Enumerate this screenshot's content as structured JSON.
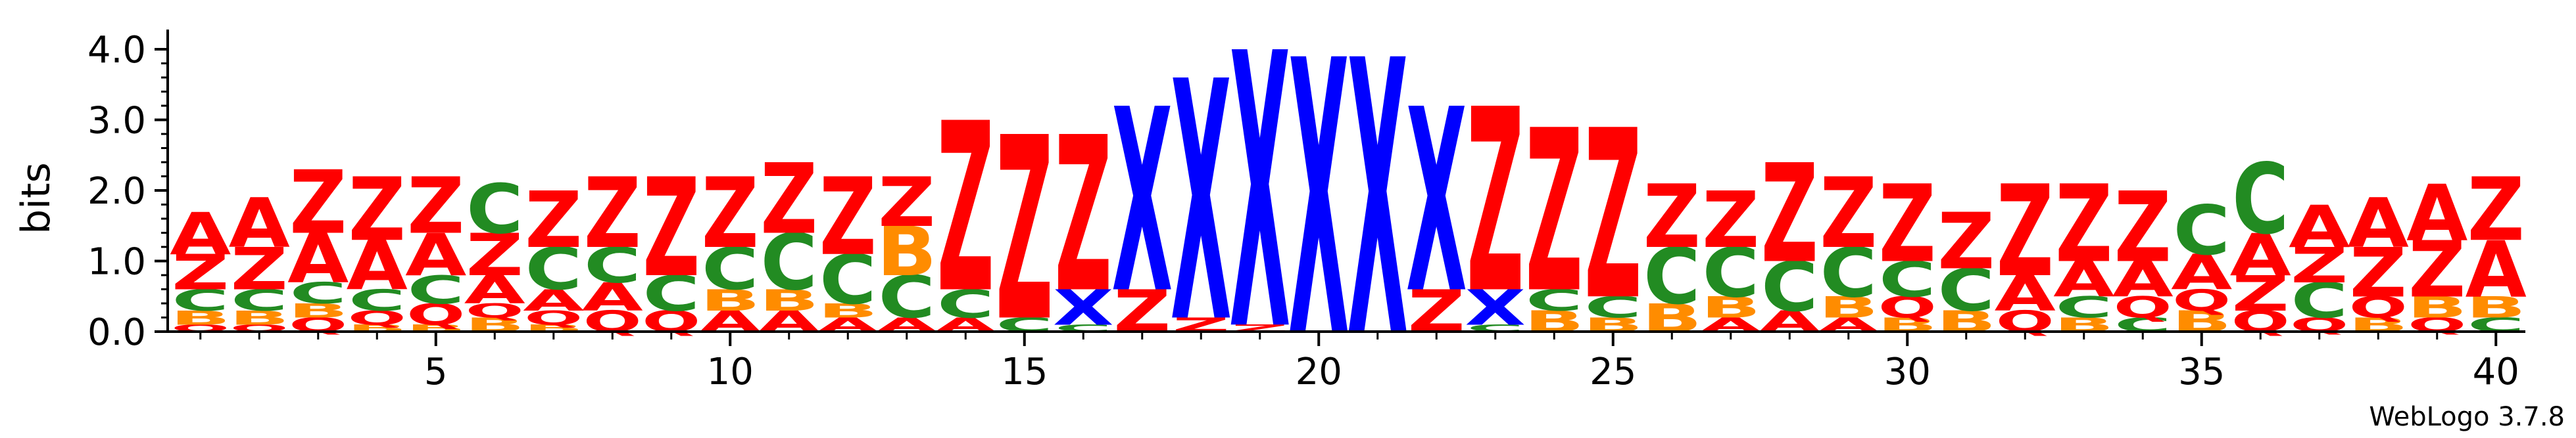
{
  "chart_data": {
    "type": "sequence-logo",
    "ylabel": "bits",
    "ylim": [
      0,
      4.0
    ],
    "y_ticks": [
      "0.0",
      "1.0",
      "2.0",
      "3.0",
      "4.0"
    ],
    "x_ticks": [
      "5",
      "10",
      "15",
      "20",
      "25",
      "30",
      "35",
      "40"
    ],
    "x_tick_positions": [
      5,
      10,
      15,
      20,
      25,
      30,
      35,
      40
    ],
    "positions": 40,
    "credit": "WebLogo 3.7.8",
    "colors": {
      "A": "#ff0000",
      "Z": "#ff0000",
      "B": "#ff8c00",
      "C": "#228b22",
      "Q": "#ff0000",
      "X": "#0000ff"
    },
    "columns": [
      {
        "pos": 1,
        "stack": [
          [
            "Q",
            0.1
          ],
          [
            "B",
            0.2
          ],
          [
            "C",
            0.3
          ],
          [
            "Z",
            0.5
          ],
          [
            "A",
            0.6
          ]
        ]
      },
      {
        "pos": 2,
        "stack": [
          [
            "Q",
            0.1
          ],
          [
            "B",
            0.2
          ],
          [
            "C",
            0.3
          ],
          [
            "Z",
            0.6
          ],
          [
            "A",
            0.7
          ]
        ]
      },
      {
        "pos": 3,
        "stack": [
          [
            "Q",
            0.2
          ],
          [
            "B",
            0.2
          ],
          [
            "C",
            0.3
          ],
          [
            "A",
            0.7
          ],
          [
            "Z",
            0.9
          ]
        ]
      },
      {
        "pos": 4,
        "stack": [
          [
            "B",
            0.1
          ],
          [
            "Q",
            0.2
          ],
          [
            "C",
            0.3
          ],
          [
            "A",
            0.7
          ],
          [
            "Z",
            0.9
          ]
        ]
      },
      {
        "pos": 5,
        "stack": [
          [
            "B",
            0.1
          ],
          [
            "Q",
            0.3
          ],
          [
            "C",
            0.4
          ],
          [
            "A",
            0.6
          ],
          [
            "Z",
            0.8
          ]
        ]
      },
      {
        "pos": 6,
        "stack": [
          [
            "B",
            0.2
          ],
          [
            "Q",
            0.2
          ],
          [
            "A",
            0.4
          ],
          [
            "Z",
            0.6
          ],
          [
            "C",
            0.7
          ]
        ]
      },
      {
        "pos": 7,
        "stack": [
          [
            "B",
            0.1
          ],
          [
            "Q",
            0.2
          ],
          [
            "A",
            0.3
          ],
          [
            "C",
            0.6
          ],
          [
            "Z",
            0.8
          ]
        ]
      },
      {
        "pos": 8,
        "stack": [
          [
            "Q",
            0.3
          ],
          [
            "A",
            0.4
          ],
          [
            "C",
            0.5
          ],
          [
            "Z",
            1.0
          ]
        ]
      },
      {
        "pos": 9,
        "stack": [
          [
            "Q",
            0.3
          ],
          [
            "C",
            0.5
          ],
          [
            "Z",
            1.4
          ]
        ]
      },
      {
        "pos": 10,
        "stack": [
          [
            "A",
            0.3
          ],
          [
            "B",
            0.3
          ],
          [
            "C",
            0.6
          ],
          [
            "Z",
            1.0
          ]
        ]
      },
      {
        "pos": 11,
        "stack": [
          [
            "A",
            0.3
          ],
          [
            "B",
            0.3
          ],
          [
            "C",
            0.8
          ],
          [
            "Z",
            1.0
          ]
        ]
      },
      {
        "pos": 12,
        "stack": [
          [
            "A",
            0.2
          ],
          [
            "B",
            0.2
          ],
          [
            "C",
            0.7
          ],
          [
            "Z",
            1.1
          ]
        ]
      },
      {
        "pos": 13,
        "stack": [
          [
            "A",
            0.2
          ],
          [
            "C",
            0.6
          ],
          [
            "B",
            0.7
          ],
          [
            "Z",
            0.7
          ]
        ]
      },
      {
        "pos": 14,
        "stack": [
          [
            "A",
            0.2
          ],
          [
            "C",
            0.4
          ],
          [
            "Z",
            2.4
          ]
        ]
      },
      {
        "pos": 15,
        "stack": [
          [
            "C",
            0.2
          ],
          [
            "Z",
            2.6
          ]
        ]
      },
      {
        "pos": 16,
        "stack": [
          [
            "C",
            0.1
          ],
          [
            "X",
            0.5
          ],
          [
            "Z",
            2.2
          ]
        ]
      },
      {
        "pos": 17,
        "stack": [
          [
            "Z",
            0.6
          ],
          [
            "X",
            2.6
          ]
        ]
      },
      {
        "pos": 18,
        "stack": [
          [
            "Z",
            0.2
          ],
          [
            "X",
            3.4
          ]
        ]
      },
      {
        "pos": 19,
        "stack": [
          [
            "Z",
            0.1
          ],
          [
            "X",
            3.9
          ]
        ]
      },
      {
        "pos": 20,
        "stack": [
          [
            "X",
            3.9
          ]
        ]
      },
      {
        "pos": 21,
        "stack": [
          [
            "X",
            3.9
          ]
        ]
      },
      {
        "pos": 22,
        "stack": [
          [
            "Z",
            0.6
          ],
          [
            "X",
            2.6
          ]
        ]
      },
      {
        "pos": 23,
        "stack": [
          [
            "C",
            0.1
          ],
          [
            "X",
            0.5
          ],
          [
            "Z",
            2.6
          ]
        ]
      },
      {
        "pos": 24,
        "stack": [
          [
            "B",
            0.3
          ],
          [
            "C",
            0.3
          ],
          [
            "Z",
            2.3
          ]
        ]
      },
      {
        "pos": 25,
        "stack": [
          [
            "B",
            0.2
          ],
          [
            "C",
            0.3
          ],
          [
            "Z",
            2.4
          ]
        ]
      },
      {
        "pos": 26,
        "stack": [
          [
            "B",
            0.4
          ],
          [
            "C",
            0.8
          ],
          [
            "Z",
            0.9
          ]
        ]
      },
      {
        "pos": 27,
        "stack": [
          [
            "A",
            0.2
          ],
          [
            "B",
            0.3
          ],
          [
            "C",
            0.7
          ],
          [
            "Z",
            0.8
          ]
        ]
      },
      {
        "pos": 28,
        "stack": [
          [
            "A",
            0.3
          ],
          [
            "C",
            0.7
          ],
          [
            "Z",
            1.4
          ]
        ]
      },
      {
        "pos": 29,
        "stack": [
          [
            "A",
            0.2
          ],
          [
            "B",
            0.3
          ],
          [
            "C",
            0.7
          ],
          [
            "Z",
            1.0
          ]
        ]
      },
      {
        "pos": 30,
        "stack": [
          [
            "B",
            0.2
          ],
          [
            "Q",
            0.3
          ],
          [
            "C",
            0.5
          ],
          [
            "Z",
            1.1
          ]
        ]
      },
      {
        "pos": 31,
        "stack": [
          [
            "B",
            0.3
          ],
          [
            "C",
            0.6
          ],
          [
            "Z",
            0.8
          ]
        ]
      },
      {
        "pos": 32,
        "stack": [
          [
            "Q",
            0.3
          ],
          [
            "A",
            0.5
          ],
          [
            "Z",
            1.3
          ]
        ]
      },
      {
        "pos": 33,
        "stack": [
          [
            "B",
            0.2
          ],
          [
            "C",
            0.3
          ],
          [
            "A",
            0.5
          ],
          [
            "Z",
            1.1
          ]
        ]
      },
      {
        "pos": 34,
        "stack": [
          [
            "C",
            0.2
          ],
          [
            "Q",
            0.3
          ],
          [
            "A",
            0.5
          ],
          [
            "Z",
            1.0
          ]
        ]
      },
      {
        "pos": 35,
        "stack": [
          [
            "B",
            0.3
          ],
          [
            "Q",
            0.3
          ],
          [
            "A",
            0.5
          ],
          [
            "C",
            0.7
          ]
        ]
      },
      {
        "pos": 36,
        "stack": [
          [
            "Q",
            0.3
          ],
          [
            "Z",
            0.5
          ],
          [
            "A",
            0.6
          ],
          [
            "C",
            1.0
          ]
        ]
      },
      {
        "pos": 37,
        "stack": [
          [
            "Q",
            0.2
          ],
          [
            "C",
            0.5
          ],
          [
            "Z",
            0.5
          ],
          [
            "A",
            0.6
          ]
        ]
      },
      {
        "pos": 38,
        "stack": [
          [
            "B",
            0.2
          ],
          [
            "Q",
            0.3
          ],
          [
            "Z",
            0.7
          ],
          [
            "A",
            0.7
          ]
        ]
      },
      {
        "pos": 39,
        "stack": [
          [
            "Q",
            0.2
          ],
          [
            "B",
            0.3
          ],
          [
            "Z",
            0.8
          ],
          [
            "A",
            0.8
          ]
        ]
      },
      {
        "pos": 40,
        "stack": [
          [
            "C",
            0.2
          ],
          [
            "B",
            0.3
          ],
          [
            "A",
            0.8
          ],
          [
            "Z",
            0.9
          ]
        ]
      }
    ]
  }
}
